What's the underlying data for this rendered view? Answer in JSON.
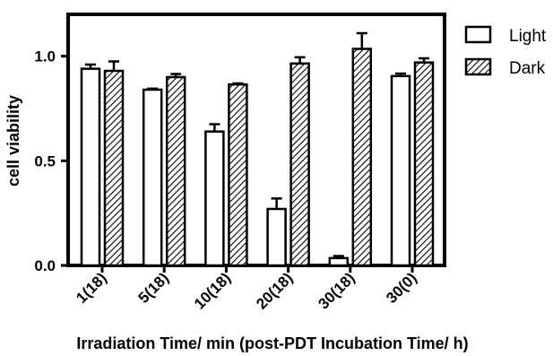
{
  "chart_data": {
    "type": "bar",
    "xlabel": "Irradiation Time/ min (post-PDT Incubation Time/ h)",
    "ylabel": "cell viability",
    "categories": [
      "1(18)",
      "5(18)",
      "10(18)",
      "20(18)",
      "30(18)",
      "30(0)"
    ],
    "ylim": [
      0,
      1.2
    ],
    "yticks": [
      0.0,
      0.5,
      1.0
    ],
    "ytick_labels": [
      "0.0",
      "0.5",
      "1.0"
    ],
    "grid": false,
    "legend_position": "top-right",
    "series": [
      {
        "name": "Light",
        "pattern": "open",
        "values": [
          0.94,
          0.84,
          0.64,
          0.27,
          0.035,
          0.905
        ],
        "errors": [
          0.02,
          0.005,
          0.035,
          0.05,
          0.01,
          0.012
        ]
      },
      {
        "name": "Dark",
        "pattern": "hatched",
        "values": [
          0.93,
          0.9,
          0.865,
          0.965,
          1.035,
          0.97
        ],
        "errors": [
          0.045,
          0.015,
          0.005,
          0.03,
          0.075,
          0.02
        ]
      }
    ],
    "colors": {
      "stroke": "#000000",
      "fill_open": "#ffffff",
      "hatch": "#000000"
    }
  }
}
